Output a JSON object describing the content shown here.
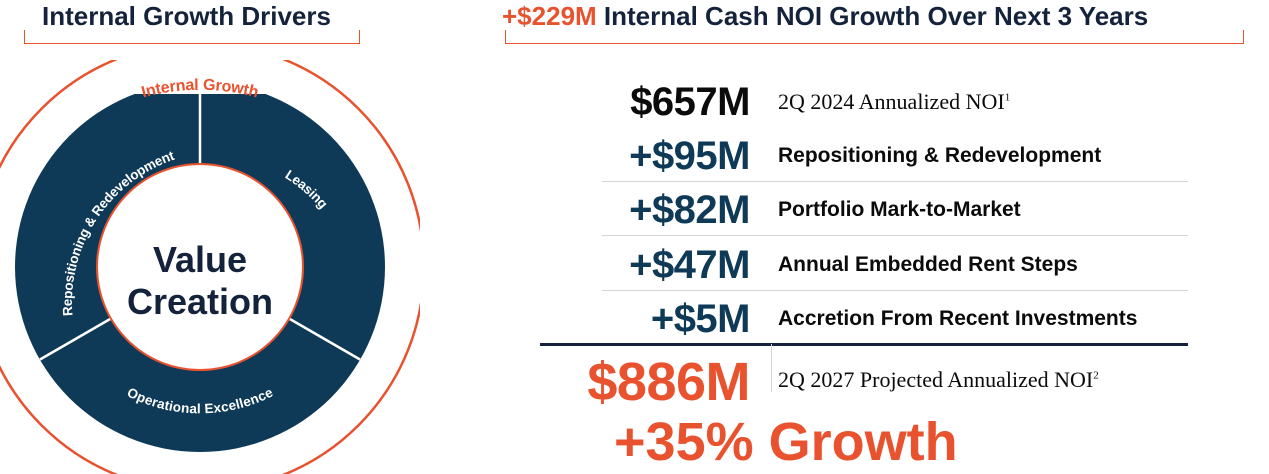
{
  "left_panel": {
    "title": "Internal Growth Drivers",
    "outer_label": "Internal Growth",
    "center_line1": "Value",
    "center_line2": "Creation",
    "segments": [
      {
        "label": "Repositioning & Redevelopment"
      },
      {
        "label": "Leasing"
      },
      {
        "label": "Operational Excellence"
      }
    ],
    "colors": {
      "accent": "#e8522f",
      "navy": "#0f3a57",
      "text": "#14233b"
    }
  },
  "right_panel": {
    "title_accent": "+$229M",
    "title_rest": "Internal Cash NOI Growth Over Next 3 Years",
    "base": {
      "amount": "$657M",
      "label": "2Q 2024 Annualized NOI",
      "footnote": "1"
    },
    "drivers": [
      {
        "amount": "+$95M",
        "label": "Repositioning & Redevelopment"
      },
      {
        "amount": "+$82M",
        "label": "Portfolio Mark-to-Market"
      },
      {
        "amount": "+$47M",
        "label": "Annual Embedded Rent Steps"
      },
      {
        "amount": "+$5M",
        "label": "Accretion From Recent Investments"
      }
    ],
    "total": {
      "amount": "$886M",
      "label": "2Q 2027 Projected Annualized NOI",
      "footnote": "2"
    },
    "growth": "+35% Growth"
  }
}
